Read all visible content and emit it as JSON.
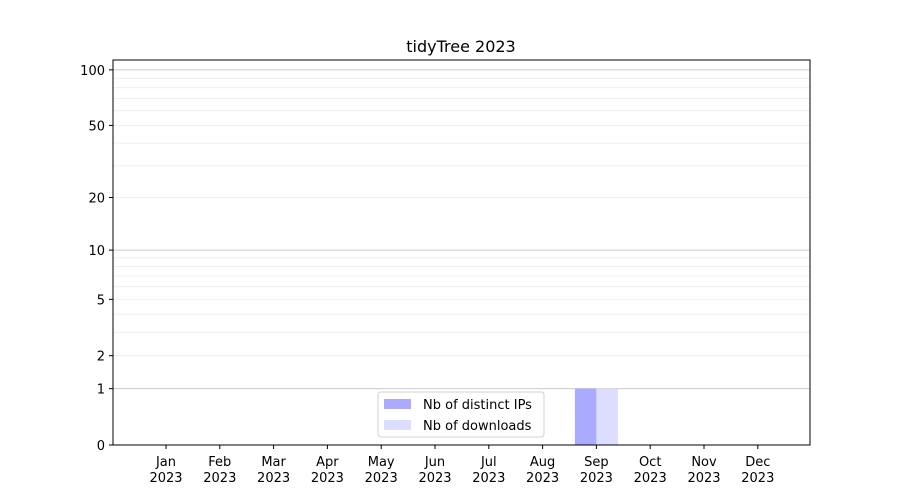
{
  "chart_data": {
    "type": "bar",
    "title": "tidyTree 2023",
    "xlabel": "",
    "ylabel": "",
    "y_scale": "log10(y+1)",
    "ylim": [
      0,
      113
    ],
    "y_ticks": [
      0,
      1,
      2,
      5,
      10,
      20,
      50,
      100
    ],
    "y_major_grid": [
      1,
      10,
      100
    ],
    "y_minor_grid": [
      2,
      3,
      4,
      5,
      6,
      7,
      8,
      9,
      20,
      30,
      40,
      50,
      60,
      70,
      80,
      90
    ],
    "grid": true,
    "categories": [
      "Jan\n2023",
      "Feb\n2023",
      "Mar\n2023",
      "Apr\n2023",
      "May\n2023",
      "Jun\n2023",
      "Jul\n2023",
      "Aug\n2023",
      "Sep\n2023",
      "Oct\n2023",
      "Nov\n2023",
      "Dec\n2023"
    ],
    "series": [
      {
        "name": "Nb of distinct IPs",
        "color": "#aaaaff",
        "values": [
          0,
          0,
          0,
          0,
          0,
          0,
          0,
          0,
          1,
          0,
          0,
          0
        ]
      },
      {
        "name": "Nb of downloads",
        "color": "#ddddff",
        "values": [
          0,
          0,
          0,
          0,
          0,
          0,
          0,
          0,
          1,
          0,
          0,
          0
        ]
      }
    ],
    "legend_placement": "lower-center"
  }
}
